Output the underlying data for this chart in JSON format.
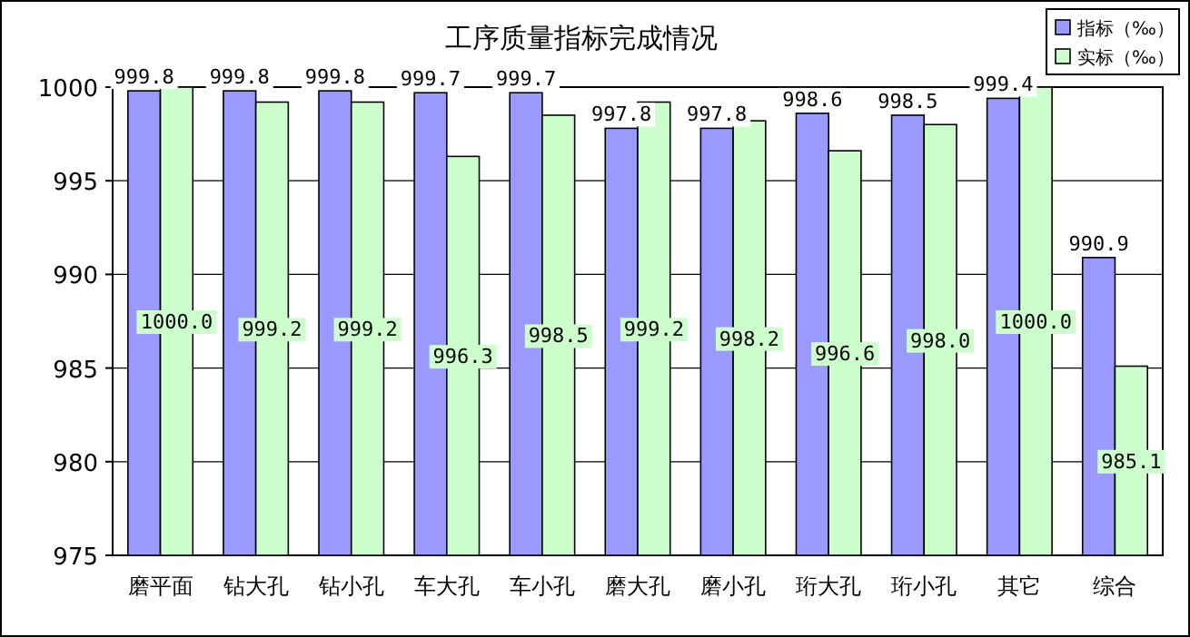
{
  "chart_data": {
    "type": "bar",
    "title": "工序质量指标完成情况",
    "categories": [
      "磨平面",
      "钻大孔",
      "钻小孔",
      "车大孔",
      "车小孔",
      "磨大孔",
      "磨小孔",
      "珩大孔",
      "珩小孔",
      "其它",
      "综合"
    ],
    "series": [
      {
        "name": "指标（‰）",
        "color": "#9999ff",
        "values": [
          999.8,
          999.8,
          999.8,
          999.7,
          999.7,
          997.8,
          997.8,
          998.6,
          998.5,
          999.4,
          990.9
        ],
        "value_labels": [
          "999.8",
          "999.8",
          "999.8",
          "999.7",
          "999.7",
          "997.8",
          "997.8",
          "998.6",
          "998.5",
          "999.4",
          "990.9"
        ]
      },
      {
        "name": "实标（‰）",
        "color": "#ccffcc",
        "values": [
          1000.0,
          999.2,
          999.2,
          996.3,
          998.5,
          999.2,
          998.2,
          996.6,
          998.0,
          1000.0,
          985.1
        ],
        "value_labels": [
          "1000.0",
          "999.2",
          "999.2",
          "996.3",
          "998.5",
          "999.2",
          "998.2",
          "996.6",
          "998.0",
          "1000.0",
          "985.1"
        ]
      }
    ],
    "ylim": [
      975,
      1000
    ],
    "yticks": [
      975,
      980,
      985,
      990,
      995,
      1000
    ],
    "grid": "y",
    "legend": "top right"
  }
}
